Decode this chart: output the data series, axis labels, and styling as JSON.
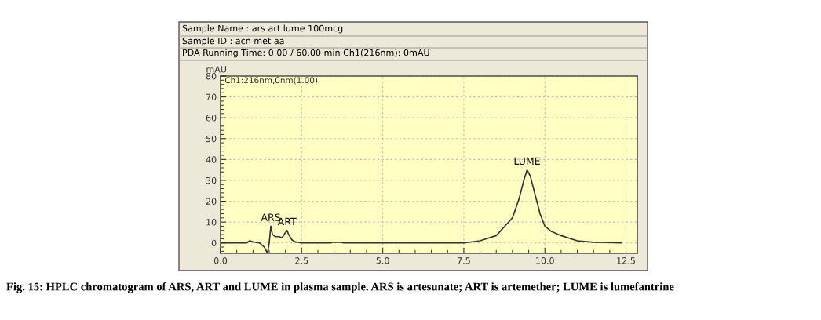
{
  "chart_data": {
    "type": "line",
    "ylabel": "mAU",
    "annotations": [
      "Sample Name : ars art lume 100mcg",
      "Sample ID : acn met aa",
      "PDA Running Time: 0.00 / 60.00 min Ch1(216nm): 0mAU",
      "Ch1:216nm,0nm(1.00)",
      "Fig. 15: HPLC chromatogram of ARS, ART and LUME in plasma sample. ARS is artesunate; ART is artemether; LUME is lumefantrine",
      {
        "text": "ARS",
        "x": 1.55,
        "y": 8
      },
      {
        "text": "ART",
        "x": 2.05,
        "y": 6
      },
      {
        "text": "LUME",
        "x": 9.45,
        "y": 35
      }
    ],
    "series": [
      {
        "color": "#333333",
        "x": [
          0,
          0.8,
          0.9,
          1.0,
          1.2,
          1.35,
          1.45,
          1.5,
          1.55,
          1.6,
          1.7,
          1.8,
          1.9,
          2.0,
          2.05,
          2.1,
          2.2,
          2.3,
          2.5,
          3.4,
          3.45,
          3.7,
          3.8,
          7.5,
          8.0,
          8.5,
          9.0,
          9.2,
          9.35,
          9.45,
          9.55,
          9.7,
          9.85,
          10.0,
          10.2,
          10.5,
          11.0,
          11.5,
          12.35
        ],
        "values": [
          0,
          0,
          1,
          0.5,
          0,
          -2,
          -5,
          0,
          8,
          4,
          3,
          3,
          2.5,
          5,
          6,
          4,
          1.5,
          0.5,
          0,
          0,
          0.3,
          0.3,
          0,
          0,
          1,
          3.5,
          12,
          21,
          30,
          35,
          32,
          23,
          14,
          8,
          5.5,
          3.5,
          1,
          0.3,
          0
        ]
      }
    ],
    "xlim": [
      0,
      12.85
    ],
    "ylim": [
      -5,
      80
    ],
    "xticks": [
      {
        "value": 0,
        "label": "0.0"
      },
      {
        "value": 2.5,
        "label": "2.5"
      },
      {
        "value": 5,
        "label": "5.0"
      },
      {
        "value": 7.5,
        "label": "7.5"
      },
      {
        "value": 10,
        "label": "10.0"
      },
      {
        "value": 12.5,
        "label": "12.5"
      }
    ],
    "yticks": [
      0,
      10,
      20,
      30,
      40,
      50,
      60,
      70,
      80
    ],
    "grid": true,
    "marker": "none",
    "line_style": "solid"
  }
}
